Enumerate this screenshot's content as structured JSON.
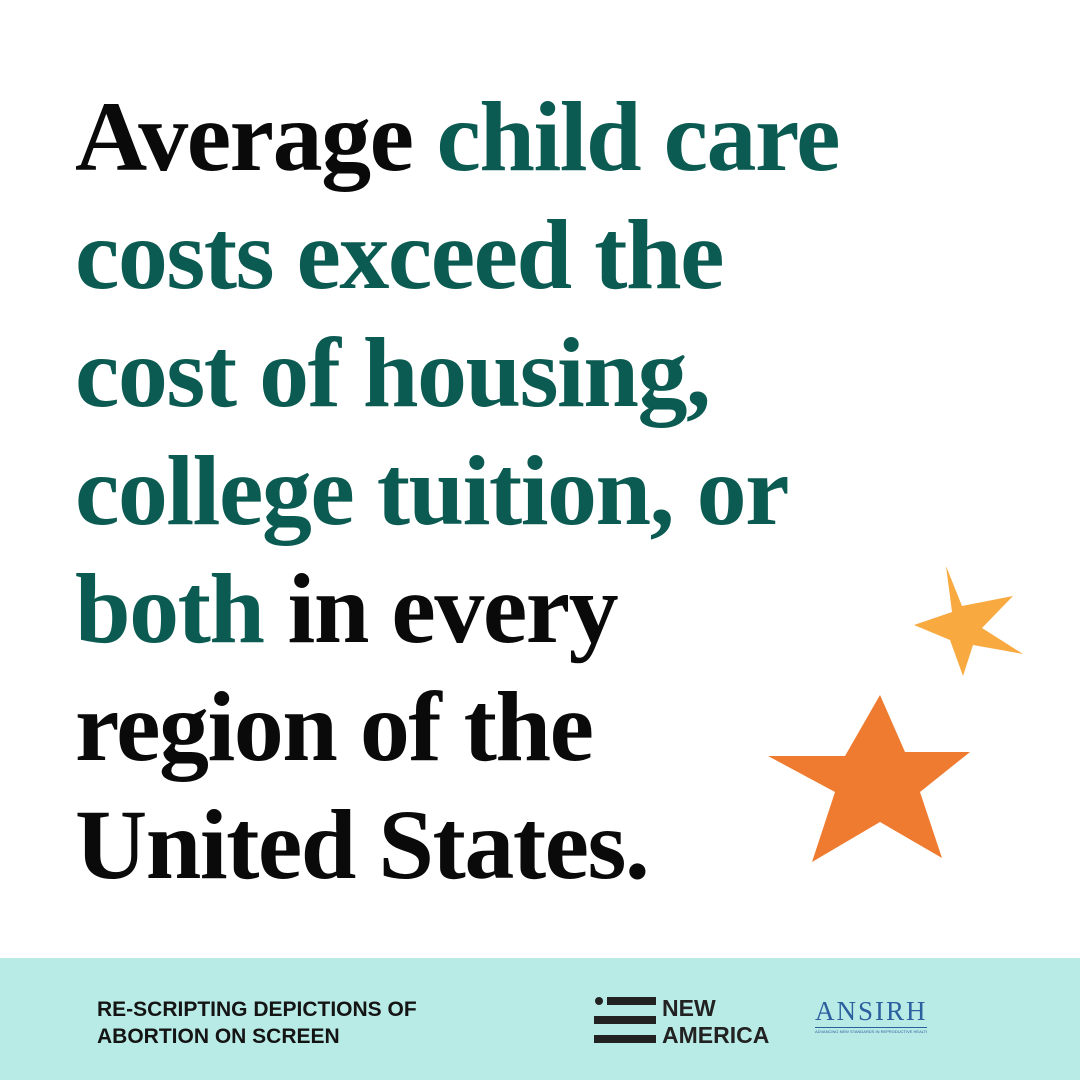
{
  "headline": {
    "lines": [
      [
        {
          "text": "Average",
          "accent": false
        },
        {
          "text": "child care",
          "accent": true
        }
      ],
      [
        {
          "text": "costs exceed the",
          "accent": true
        }
      ],
      [
        {
          "text": "cost of housing,",
          "accent": true
        }
      ],
      [
        {
          "text": "college tuition, or",
          "accent": true
        }
      ],
      [
        {
          "text": "both",
          "accent": true
        },
        {
          "text": "in every",
          "accent": false
        }
      ],
      [
        {
          "text": "region of the",
          "accent": false
        }
      ],
      [
        {
          "text": "United States.",
          "accent": false
        }
      ]
    ]
  },
  "footer": {
    "project_lines": [
      "RE-SCRIPTING DEPICTIONS OF",
      "ABORTION ON SCREEN"
    ],
    "new_america_lines": [
      "NEW",
      "AMERICA"
    ],
    "ansirh": {
      "name": "ANSIRH",
      "tagline": "ADVANCING NEW STANDARDS IN REPRODUCTIVE HEALTH"
    }
  }
}
